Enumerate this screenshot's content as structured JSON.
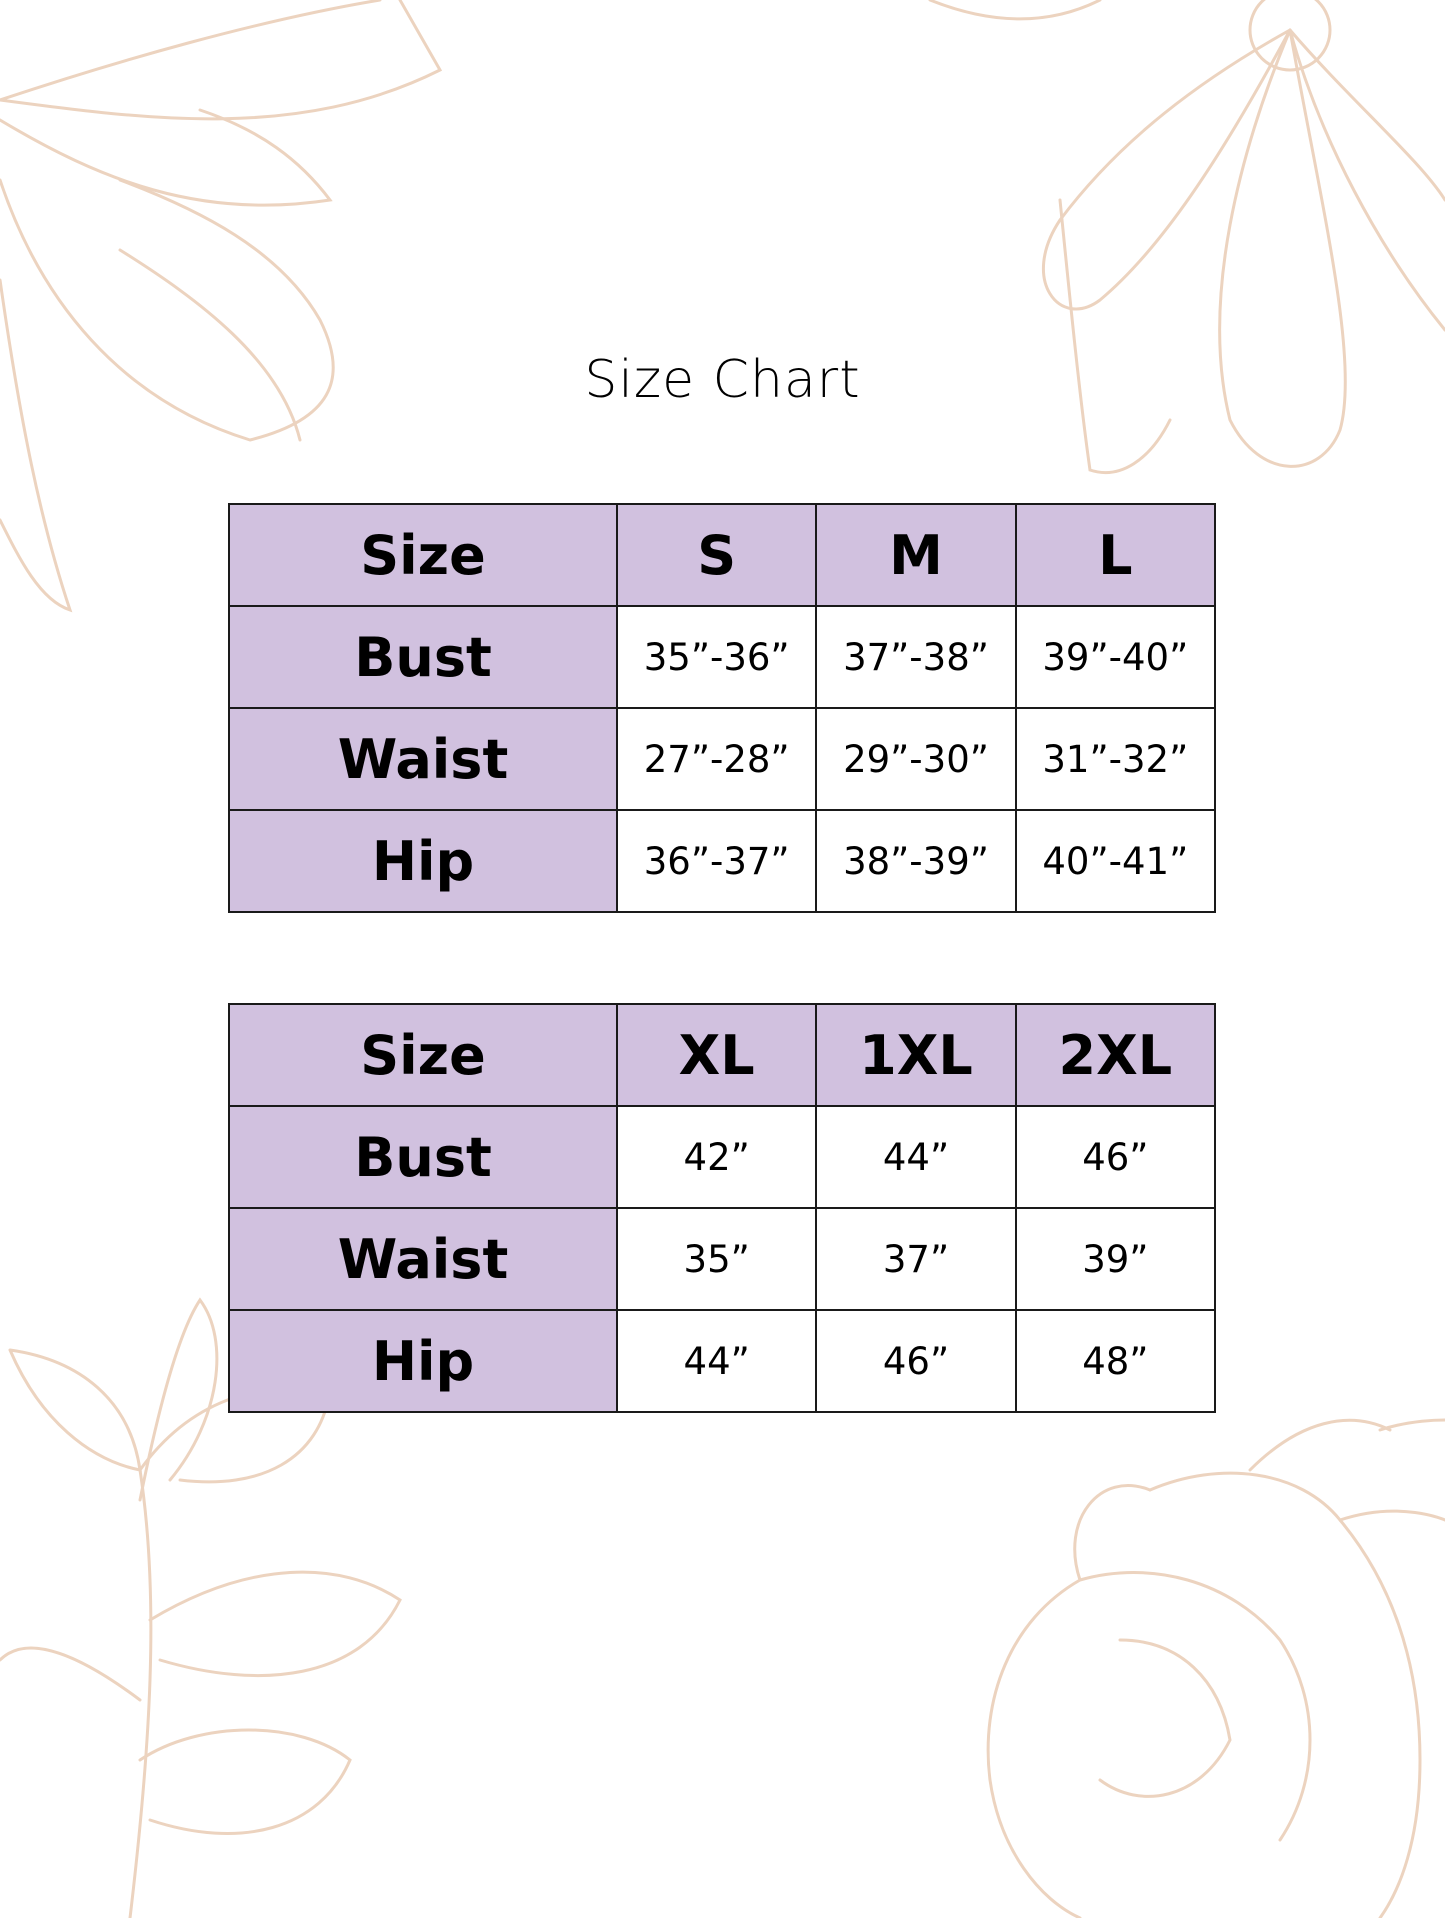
{
  "title": "Size Chart",
  "colors": {
    "header_fill": "#d1c1df",
    "border": "#1a1a1a",
    "floral_line": "#ecd3bf"
  },
  "decoration": "floral line art in corners",
  "tables": [
    {
      "columns": [
        "Size",
        "S",
        "M",
        "L"
      ],
      "rows": [
        {
          "label": "Bust",
          "values": [
            "35”-36”",
            "37”-38”",
            "39”-40”"
          ]
        },
        {
          "label": "Waist",
          "values": [
            "27”-28”",
            "29”-30”",
            "31”-32”"
          ]
        },
        {
          "label": "Hip",
          "values": [
            "36”-37”",
            "38”-39”",
            "40”-41”"
          ]
        }
      ]
    },
    {
      "columns": [
        "Size",
        "XL",
        "1XL",
        "2XL"
      ],
      "rows": [
        {
          "label": "Bust",
          "values": [
            "42”",
            "44”",
            "46”"
          ]
        },
        {
          "label": "Waist",
          "values": [
            "35”",
            "37”",
            "39”"
          ]
        },
        {
          "label": "Hip",
          "values": [
            "44”",
            "46”",
            "48”"
          ]
        }
      ]
    }
  ]
}
